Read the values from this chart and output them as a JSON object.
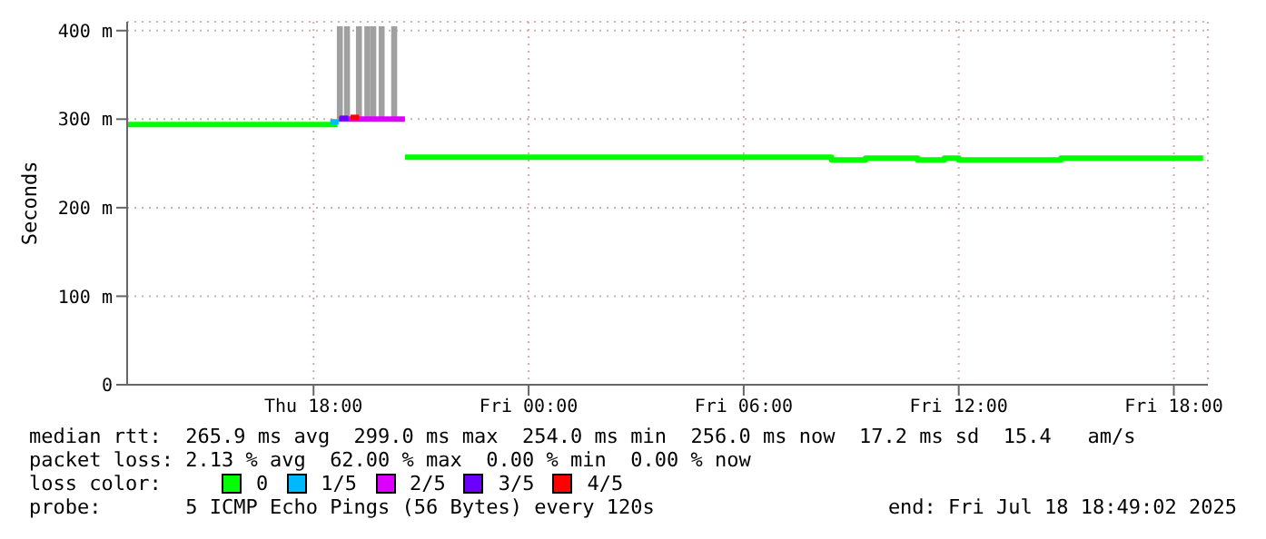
{
  "chart_data": {
    "type": "step",
    "ylabel": "Seconds",
    "legend_title": "loss color:",
    "legend": "bottom",
    "grid": true,
    "xlim": [
      "2025-07-17T12:48",
      "2025-07-18T18:57"
    ],
    "xticks": [
      {
        "value": "2025-07-17T18:00",
        "label": "Thu 18:00"
      },
      {
        "value": "2025-07-18T00:00",
        "label": "Fri 00:00"
      },
      {
        "value": "2025-07-18T06:00",
        "label": "Fri 06:00"
      },
      {
        "value": "2025-07-18T12:00",
        "label": "Fri 12:00"
      },
      {
        "value": "2025-07-18T18:00",
        "label": "Fri 18:00"
      }
    ],
    "ylim": [
      0,
      410
    ],
    "yticks": [
      0,
      {
        "value": 100,
        "label": "100 m"
      },
      {
        "value": 200,
        "label": "200 m"
      },
      {
        "value": 300,
        "label": "300 m"
      },
      {
        "value": 400,
        "label": "400 m"
      }
    ],
    "series": [
      {
        "type": "bar",
        "color": "#a0a0a0",
        "x": [
          "2025-07-17T18:44",
          "2025-07-17T18:56",
          "2025-07-17T19:16",
          "2025-07-17T19:30",
          "2025-07-17T19:40",
          "2025-07-17T19:54",
          "2025-07-17T20:15"
        ],
        "base": [
          300,
          300,
          300,
          300,
          300,
          300,
          300
        ],
        "values": [
          105,
          105,
          105,
          105,
          105,
          105,
          105
        ]
      },
      {
        "name": "0",
        "color": "#00ff00",
        "x": [
          "2025-07-17T12:48",
          "2025-07-17T18:40",
          "2025-07-17T19:30",
          "2025-07-17T20:33",
          "2025-07-18T08:27",
          "2025-07-18T09:24",
          "2025-07-18T10:51",
          "2025-07-18T11:36",
          "2025-07-18T12:00",
          "2025-07-18T14:51",
          "2025-07-18T18:49"
        ],
        "values": [
          294,
          294,
          null,
          257,
          254,
          256,
          254,
          256,
          254,
          256,
          256
        ]
      },
      {
        "name": "1/5",
        "color": "#00b8ff",
        "x": [
          "2025-07-17T18:28",
          "2025-07-17T18:42"
        ],
        "values": [
          297,
          297
        ]
      },
      {
        "name": "2/5",
        "color": "#dd00ff",
        "x": [
          "2025-07-17T18:42",
          "2025-07-17T20:33"
        ],
        "values": [
          300,
          300
        ]
      },
      {
        "name": "3/5",
        "color": "#6a00ff",
        "x": [
          "2025-07-17T18:44",
          "2025-07-17T18:58"
        ],
        "values": [
          301,
          301
        ]
      },
      {
        "name": "4/5",
        "color": "#ff0000",
        "x": [
          "2025-07-17T19:02",
          "2025-07-17T19:16"
        ],
        "values": [
          302,
          302
        ]
      }
    ],
    "annotations": [
      "median rtt:  265.9 ms avg  299.0 ms max  254.0 ms min  256.0 ms now  17.2 ms sd  15.4   am/s",
      "packet loss: 2.13 % avg  62.00 % max  0.00 % min  0.00 % now",
      "probe:       5 ICMP Echo Pings (56 Bytes) every 120s",
      "end: Fri Jul 18 18:49:02 2025"
    ]
  }
}
